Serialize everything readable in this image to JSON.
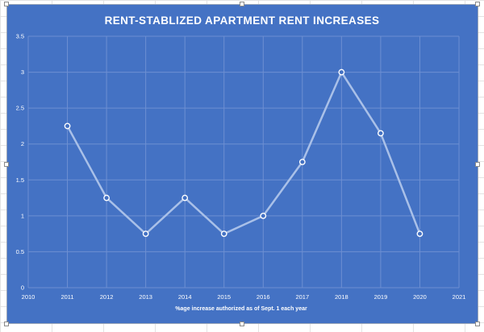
{
  "chart_data": {
    "type": "line",
    "title": "RENT-STABLIZED APARTMENT RENT INCREASES",
    "xlabel": "%age increase authorized as of Sept. 1 each year",
    "ylabel": "",
    "x": [
      2011,
      2012,
      2013,
      2014,
      2015,
      2016,
      2017,
      2018,
      2019,
      2020
    ],
    "series": [
      {
        "values": [
          2.25,
          1.25,
          0.75,
          1.25,
          0.75,
          1.0,
          1.75,
          3.0,
          2.15,
          0.75
        ]
      }
    ],
    "xlim": [
      2010,
      2021
    ],
    "ylim": [
      0,
      3.5
    ],
    "x_ticks": [
      "2010",
      "2011",
      "2012",
      "2013",
      "2014",
      "2015",
      "2016",
      "2017",
      "2018",
      "2019",
      "2020",
      "2021"
    ],
    "y_ticks": [
      "0",
      "0.5",
      "1",
      "1.5",
      "2",
      "2.5",
      "3",
      "3.5"
    ],
    "grid": true,
    "legend": "none",
    "colors": {
      "background": "#4472c4",
      "line": "#a9c0e8",
      "marker_fill": "#4472c4",
      "marker_stroke": "#ffffff",
      "grid": "#6d8fd2",
      "text": "#ffffff"
    }
  }
}
